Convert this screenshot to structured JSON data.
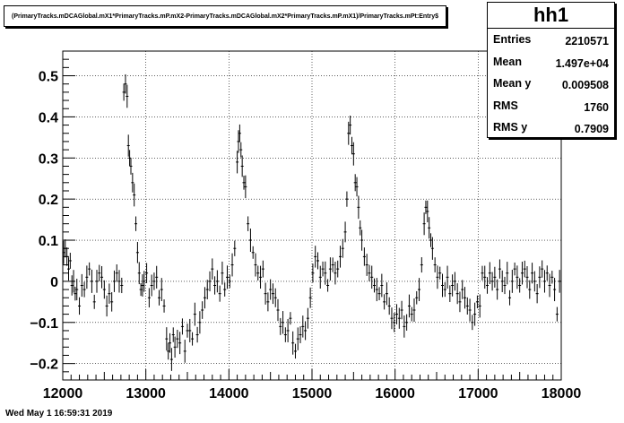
{
  "title": "(PrimaryTracks.mDCAGlobal.mX1*PrimaryTracks.mP.mX2-PrimaryTracks.mDCAGlobal.mX2*PrimaryTracks.mP.mX1)/PrimaryTracks.mPt:Entry$",
  "stats": {
    "name": "hh1",
    "rows": [
      {
        "label": "Entries",
        "value": "2210571"
      },
      {
        "label": "Mean",
        "value": "1.497e+04"
      },
      {
        "label": "Mean y",
        "value": "0.009508"
      },
      {
        "label": "RMS",
        "value": "1760"
      },
      {
        "label": "RMS y",
        "value": "0.7909"
      }
    ]
  },
  "footer": "Wed May  1 16:59:31 2019",
  "chart_data": {
    "type": "scatter",
    "title": "(PrimaryTracks.mDCAGlobal.mX1*PrimaryTracks.mP.mX2-PrimaryTracks.mDCAGlobal.mX2*PrimaryTracks.mP.mX1)/PrimaryTracks.mPt:Entry$",
    "xlabel": "",
    "ylabel": "",
    "xlim": [
      12000,
      18000
    ],
    "ylim": [
      -0.24,
      0.56
    ],
    "grid": true,
    "x_ticks": [
      "12000",
      "13000",
      "14000",
      "15000",
      "16000",
      "17000",
      "18000"
    ],
    "x_tick_values": [
      12000,
      13000,
      14000,
      15000,
      16000,
      17000,
      18000
    ],
    "y_ticks": [
      "−0.2",
      "−0.1",
      "0",
      "0.1",
      "0.2",
      "0.3",
      "0.4",
      "0.5"
    ],
    "y_tick_values": [
      -0.2,
      -0.1,
      0,
      0.1,
      0.2,
      0.3,
      0.4,
      0.5
    ],
    "points": [
      [
        12010,
        0.07
      ],
      [
        12030,
        0.08
      ],
      [
        12050,
        0.06
      ],
      [
        12070,
        0.03
      ],
      [
        12090,
        0.05
      ],
      [
        12110,
        -0.01
      ],
      [
        12130,
        0.0
      ],
      [
        12150,
        -0.03
      ],
      [
        12170,
        -0.02
      ],
      [
        12200,
        -0.06
      ],
      [
        12230,
        -0.01
      ],
      [
        12260,
        -0.02
      ],
      [
        12290,
        0.01
      ],
      [
        12320,
        0.03
      ],
      [
        12350,
        0.0
      ],
      [
        12380,
        -0.05
      ],
      [
        12410,
        0.0
      ],
      [
        12440,
        0.02
      ],
      [
        12470,
        0.01
      ],
      [
        12500,
        -0.02
      ],
      [
        12530,
        -0.06
      ],
      [
        12560,
        -0.03
      ],
      [
        12590,
        -0.05
      ],
      [
        12620,
        0.0
      ],
      [
        12650,
        0.02
      ],
      [
        12680,
        0.0
      ],
      [
        12710,
        -0.01
      ],
      [
        12735,
        0.46
      ],
      [
        12755,
        0.48
      ],
      [
        12775,
        0.45
      ],
      [
        12790,
        0.33
      ],
      [
        12805,
        0.3
      ],
      [
        12820,
        0.28
      ],
      [
        12840,
        0.24
      ],
      [
        12860,
        0.21
      ],
      [
        12880,
        0.14
      ],
      [
        12900,
        0.07
      ],
      [
        12920,
        0.02
      ],
      [
        12940,
        -0.02
      ],
      [
        12960,
        -0.01
      ],
      [
        12980,
        0.0
      ],
      [
        13010,
        0.02
      ],
      [
        13040,
        -0.04
      ],
      [
        13070,
        -0.01
      ],
      [
        13100,
        0.0
      ],
      [
        13130,
        0.01
      ],
      [
        13160,
        -0.04
      ],
      [
        13190,
        -0.02
      ],
      [
        13220,
        -0.06
      ],
      [
        13250,
        -0.14
      ],
      [
        13270,
        -0.17
      ],
      [
        13290,
        -0.15
      ],
      [
        13310,
        -0.19
      ],
      [
        13330,
        -0.13
      ],
      [
        13350,
        -0.16
      ],
      [
        13380,
        -0.14
      ],
      [
        13410,
        -0.15
      ],
      [
        13440,
        -0.11
      ],
      [
        13470,
        -0.17
      ],
      [
        13500,
        -0.12
      ],
      [
        13530,
        -0.12
      ],
      [
        13560,
        -0.14
      ],
      [
        13590,
        -0.08
      ],
      [
        13620,
        -0.13
      ],
      [
        13650,
        -0.1
      ],
      [
        13680,
        -0.07
      ],
      [
        13710,
        -0.04
      ],
      [
        13740,
        -0.02
      ],
      [
        13770,
        0.0
      ],
      [
        13800,
        0.03
      ],
      [
        13830,
        -0.01
      ],
      [
        13860,
        0.0
      ],
      [
        13890,
        -0.03
      ],
      [
        13920,
        0.02
      ],
      [
        13950,
        -0.02
      ],
      [
        13980,
        0.01
      ],
      [
        14010,
        0.0
      ],
      [
        14040,
        0.04
      ],
      [
        14070,
        0.08
      ],
      [
        14100,
        0.29
      ],
      [
        14115,
        0.34
      ],
      [
        14130,
        0.36
      ],
      [
        14145,
        0.32
      ],
      [
        14160,
        0.28
      ],
      [
        14180,
        0.24
      ],
      [
        14200,
        0.23
      ],
      [
        14230,
        0.14
      ],
      [
        14260,
        0.1
      ],
      [
        14290,
        0.07
      ],
      [
        14320,
        0.04
      ],
      [
        14350,
        0.02
      ],
      [
        14380,
        0.01
      ],
      [
        14410,
        0.03
      ],
      [
        14440,
        -0.03
      ],
      [
        14470,
        -0.05
      ],
      [
        14500,
        -0.02
      ],
      [
        14530,
        -0.03
      ],
      [
        14560,
        -0.04
      ],
      [
        14590,
        -0.07
      ],
      [
        14620,
        -0.11
      ],
      [
        14650,
        -0.1
      ],
      [
        14680,
        -0.13
      ],
      [
        14710,
        -0.12
      ],
      [
        14740,
        -0.09
      ],
      [
        14770,
        -0.15
      ],
      [
        14800,
        -0.17
      ],
      [
        14830,
        -0.14
      ],
      [
        14860,
        -0.13
      ],
      [
        14890,
        -0.11
      ],
      [
        14920,
        -0.12
      ],
      [
        14950,
        -0.09
      ],
      [
        14980,
        -0.04
      ],
      [
        15010,
        0.02
      ],
      [
        15040,
        0.06
      ],
      [
        15070,
        0.05
      ],
      [
        15100,
        0.01
      ],
      [
        15130,
        0.03
      ],
      [
        15160,
        0.02
      ],
      [
        15190,
        -0.01
      ],
      [
        15220,
        0.03
      ],
      [
        15250,
        0.04
      ],
      [
        15280,
        0.02
      ],
      [
        15310,
        0.03
      ],
      [
        15340,
        0.06
      ],
      [
        15370,
        0.08
      ],
      [
        15400,
        0.12
      ],
      [
        15420,
        0.2
      ],
      [
        15440,
        0.36
      ],
      [
        15460,
        0.38
      ],
      [
        15480,
        0.33
      ],
      [
        15500,
        0.31
      ],
      [
        15520,
        0.24
      ],
      [
        15540,
        0.23
      ],
      [
        15560,
        0.18
      ],
      [
        15580,
        0.13
      ],
      [
        15600,
        0.1
      ],
      [
        15630,
        0.06
      ],
      [
        15660,
        0.04
      ],
      [
        15690,
        0.02
      ],
      [
        15720,
        0.01
      ],
      [
        15750,
        -0.01
      ],
      [
        15780,
        -0.02
      ],
      [
        15810,
        -0.03
      ],
      [
        15840,
        -0.01
      ],
      [
        15870,
        -0.05
      ],
      [
        15900,
        -0.03
      ],
      [
        15930,
        -0.06
      ],
      [
        15960,
        -0.09
      ],
      [
        15990,
        -0.1
      ],
      [
        16020,
        -0.08
      ],
      [
        16050,
        -0.09
      ],
      [
        16080,
        -0.07
      ],
      [
        16110,
        -0.11
      ],
      [
        16140,
        -0.1
      ],
      [
        16170,
        -0.06
      ],
      [
        16200,
        -0.08
      ],
      [
        16230,
        -0.07
      ],
      [
        16260,
        -0.04
      ],
      [
        16290,
        -0.02
      ],
      [
        16320,
        0.04
      ],
      [
        16350,
        0.14
      ],
      [
        16370,
        0.18
      ],
      [
        16390,
        0.17
      ],
      [
        16410,
        0.13
      ],
      [
        16430,
        0.1
      ],
      [
        16450,
        0.08
      ],
      [
        16480,
        0.04
      ],
      [
        16510,
        0.01
      ],
      [
        16540,
        0.02
      ],
      [
        16570,
        -0.01
      ],
      [
        16600,
        -0.02
      ],
      [
        16630,
        0.01
      ],
      [
        16660,
        -0.03
      ],
      [
        16690,
        -0.01
      ],
      [
        16720,
        0.0
      ],
      [
        16750,
        -0.03
      ],
      [
        16780,
        -0.05
      ],
      [
        16810,
        -0.02
      ],
      [
        16840,
        -0.04
      ],
      [
        16870,
        -0.06
      ],
      [
        16900,
        -0.07
      ],
      [
        16930,
        -0.1
      ],
      [
        16960,
        -0.08
      ],
      [
        16990,
        -0.05
      ],
      [
        17020,
        -0.06
      ],
      [
        17050,
        0.02
      ],
      [
        17080,
        0.01
      ],
      [
        17110,
        -0.01
      ],
      [
        17140,
        0.02
      ],
      [
        17170,
        0.0
      ],
      [
        17200,
        0.01
      ],
      [
        17230,
        -0.02
      ],
      [
        17260,
        0.03
      ],
      [
        17290,
        0.0
      ],
      [
        17320,
        -0.01
      ],
      [
        17350,
        0.02
      ],
      [
        17380,
        -0.04
      ],
      [
        17410,
        0.0
      ],
      [
        17440,
        0.03
      ],
      [
        17470,
        0.01
      ],
      [
        17500,
        -0.01
      ],
      [
        17530,
        0.02
      ],
      [
        17560,
        0.03
      ],
      [
        17590,
        0.01
      ],
      [
        17620,
        -0.02
      ],
      [
        17650,
        0.02
      ],
      [
        17680,
        0.0
      ],
      [
        17710,
        -0.03
      ],
      [
        17740,
        0.01
      ],
      [
        17770,
        0.03
      ],
      [
        17800,
        0.0
      ],
      [
        17830,
        0.02
      ],
      [
        17860,
        -0.01
      ],
      [
        17890,
        0.01
      ],
      [
        17920,
        -0.02
      ],
      [
        17950,
        -0.08
      ],
      [
        17980,
        0.0
      ]
    ]
  }
}
